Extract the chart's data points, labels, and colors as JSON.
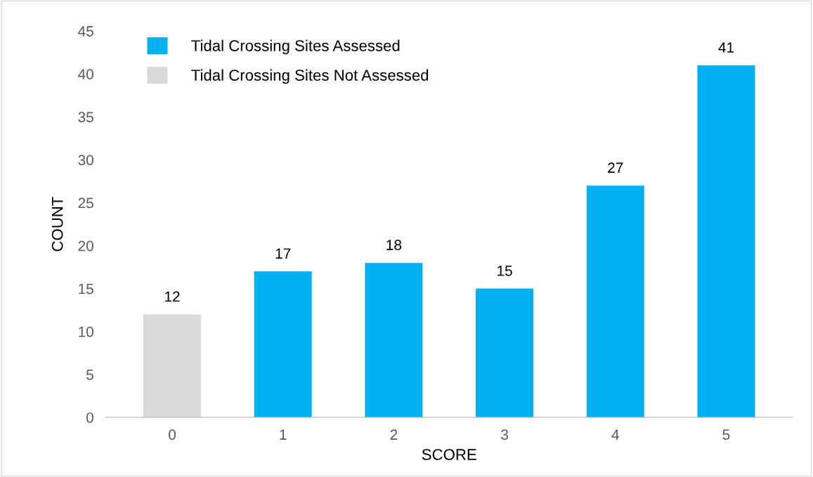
{
  "chart_data": {
    "type": "bar",
    "xlabel": "SCORE",
    "ylabel": "COUNT",
    "categories": [
      "0",
      "1",
      "2",
      "3",
      "4",
      "5"
    ],
    "series": [
      {
        "name": "Tidal Crossing Sites Assessed",
        "color": "#00b0f0",
        "values": [
          null,
          17,
          18,
          15,
          27,
          41
        ]
      },
      {
        "name": "Tidal Crossing Sites Not Assessed",
        "color": "#d9d9d9",
        "values": [
          12,
          null,
          null,
          null,
          null,
          null
        ]
      }
    ],
    "stacked": true,
    "data_labels": true,
    "ylim": [
      0,
      45
    ],
    "yticks": [
      0,
      5,
      10,
      15,
      20,
      25,
      30,
      35,
      40,
      45
    ],
    "grid": false,
    "legend": "top left"
  }
}
